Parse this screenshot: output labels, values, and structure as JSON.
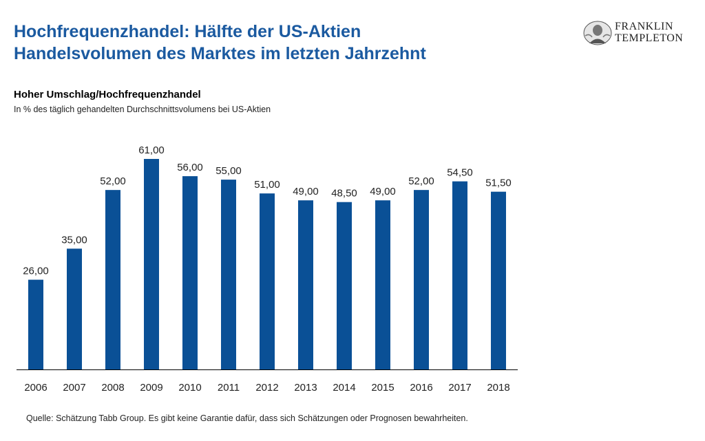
{
  "header": {
    "title_line1": "Hochfrequenzhandel: Hälfte der US-Aktien",
    "title_line2": "Handelsvolumen des Marktes im letzten Jahrzehnt"
  },
  "logo": {
    "line1": "FRANKLIN",
    "line2": "TEMPLETON",
    "icon": "franklin-portrait-icon"
  },
  "chart_data": {
    "type": "bar",
    "title": "Hoher Umschlag/Hochfrequenzhandel",
    "subtitle": "In % des täglich gehandelten Durchschnittsvolumens bei US-Aktien",
    "categories": [
      "2006",
      "2007",
      "2008",
      "2009",
      "2010",
      "2011",
      "2012",
      "2013",
      "2014",
      "2015",
      "2016",
      "2017",
      "2018"
    ],
    "values": [
      26.0,
      35.0,
      52.0,
      61.0,
      56.0,
      55.0,
      51.0,
      49.0,
      48.5,
      49.0,
      52.0,
      54.5,
      51.5
    ],
    "value_labels": [
      "26,00",
      "35,00",
      "52,00",
      "61,00",
      "56,00",
      "55,00",
      "51,00",
      "49,00",
      "48,50",
      "49,00",
      "52,00",
      "54,50",
      "51,50"
    ],
    "ylim": [
      0,
      64
    ],
    "grid": false,
    "legend": "none",
    "bar_color": "#0a5096"
  },
  "footer": {
    "source": "Quelle: Schätzung Tabb Group.  Es gibt keine Garantie dafür, dass sich Schätzungen oder Prognosen bewahrheiten."
  }
}
